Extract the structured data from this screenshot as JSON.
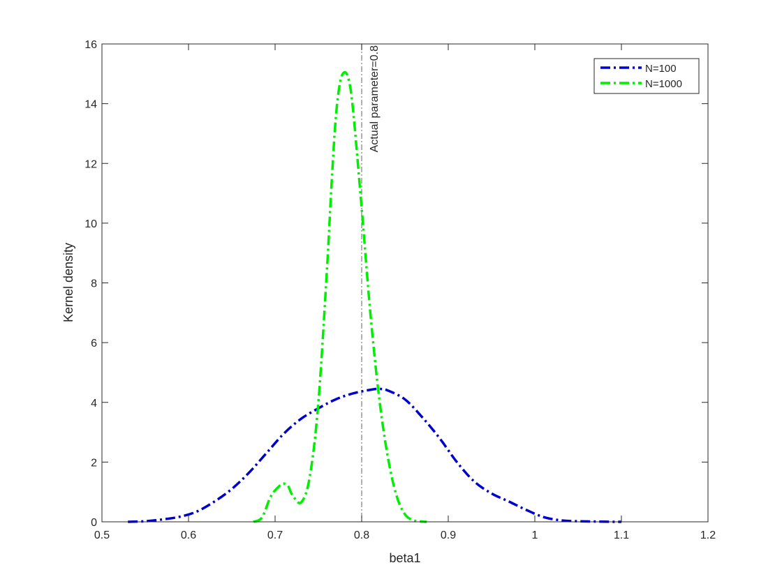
{
  "chart_data": {
    "type": "line",
    "title": "",
    "xlabel": "beta1",
    "ylabel": "Kernel density",
    "xlim": [
      0.5,
      1.2
    ],
    "ylim": [
      0,
      16
    ],
    "xticks": [
      0.5,
      0.6,
      0.7,
      0.8,
      0.9,
      1.0,
      1.1,
      1.2
    ],
    "xtick_labels": [
      "0.5",
      "0.6",
      "0.7",
      "0.8",
      "0.9",
      "1",
      "1.1",
      "1.2"
    ],
    "yticks": [
      0,
      2,
      4,
      6,
      8,
      10,
      12,
      14,
      16
    ],
    "ytick_labels": [
      "0",
      "2",
      "4",
      "6",
      "8",
      "10",
      "12",
      "14",
      "16"
    ],
    "grid": false,
    "legend_position": "top-right",
    "series": [
      {
        "name": "N=100",
        "color": "#0000cc",
        "line_style": "dash-dot",
        "x": [
          0.53,
          0.55,
          0.57,
          0.59,
          0.61,
          0.63,
          0.65,
          0.67,
          0.69,
          0.71,
          0.73,
          0.75,
          0.77,
          0.79,
          0.81,
          0.82,
          0.83,
          0.85,
          0.87,
          0.89,
          0.91,
          0.93,
          0.95,
          0.97,
          0.99,
          1.01,
          1.03,
          1.05,
          1.07,
          1.09,
          1.1
        ],
        "y": [
          0.0,
          0.02,
          0.08,
          0.17,
          0.35,
          0.68,
          1.1,
          1.65,
          2.3,
          2.95,
          3.45,
          3.8,
          4.1,
          4.3,
          4.42,
          4.45,
          4.4,
          4.1,
          3.5,
          2.8,
          2.0,
          1.35,
          0.95,
          0.68,
          0.4,
          0.16,
          0.05,
          0.02,
          0.01,
          0.0,
          0.0
        ]
      },
      {
        "name": "N=1000",
        "color": "#00ee00",
        "line_style": "dash-dot",
        "x": [
          0.675,
          0.685,
          0.695,
          0.705,
          0.71,
          0.715,
          0.72,
          0.73,
          0.74,
          0.75,
          0.76,
          0.765,
          0.77,
          0.775,
          0.78,
          0.785,
          0.79,
          0.8,
          0.81,
          0.82,
          0.83,
          0.84,
          0.85,
          0.86,
          0.87,
          0.875
        ],
        "y": [
          0.0,
          0.15,
          0.85,
          1.2,
          1.28,
          1.2,
          0.9,
          0.65,
          1.5,
          4.0,
          8.5,
          11.2,
          13.5,
          14.7,
          15.05,
          14.8,
          13.8,
          10.5,
          7.0,
          4.2,
          2.2,
          0.9,
          0.25,
          0.05,
          0.01,
          0.0
        ]
      }
    ],
    "annotations": [
      {
        "type": "vline",
        "x": 0.8,
        "color": "#808080",
        "line_style": "dash-dot",
        "label": "Actual parameter=0.8"
      }
    ]
  }
}
